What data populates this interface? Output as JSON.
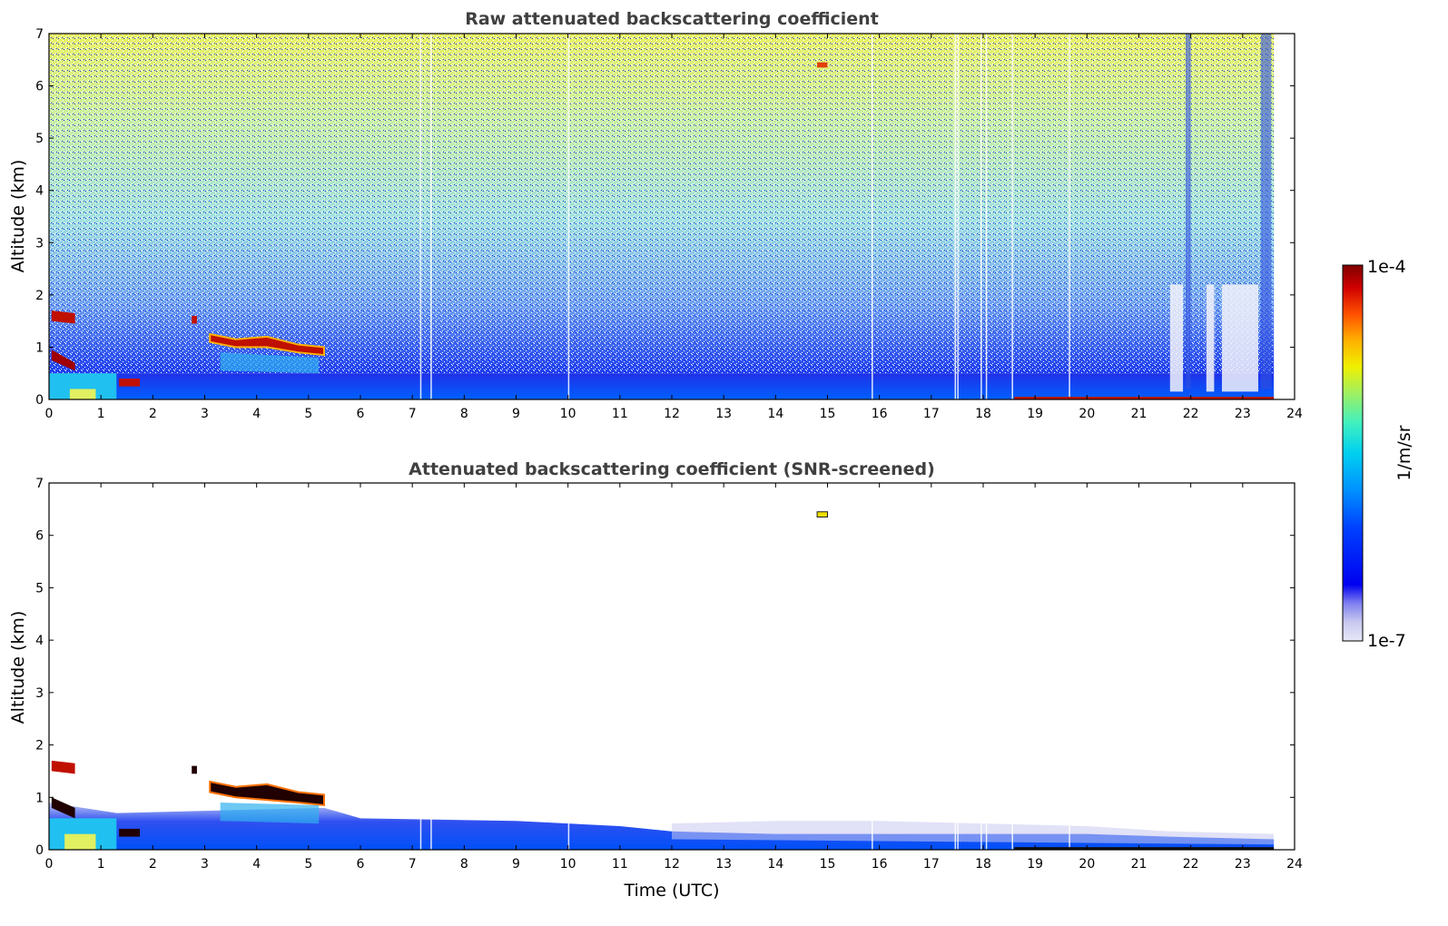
{
  "chart_data": [
    {
      "type": "heatmap",
      "title": "Raw attenuated backscattering coefficient",
      "xlabel": "",
      "ylabel": "Altitude (km)",
      "xlim": [
        0,
        24
      ],
      "ylim": [
        0,
        7
      ],
      "xticks": [
        "0",
        "1",
        "2",
        "3",
        "4",
        "5",
        "6",
        "7",
        "8",
        "9",
        "10",
        "11",
        "12",
        "13",
        "14",
        "15",
        "16",
        "17",
        "18",
        "19",
        "20",
        "21",
        "22",
        "23",
        "24"
      ],
      "yticks": [
        "0",
        "1",
        "2",
        "3",
        "4",
        "5",
        "6",
        "7"
      ],
      "features": [
        {
          "name": "noise",
          "x": [
            0,
            23.6
          ],
          "y": [
            0.5,
            7
          ],
          "level": "low-mid"
        },
        {
          "name": "boundary layer",
          "x": [
            0,
            23.6
          ],
          "y": [
            0,
            0.5
          ],
          "level": "mid"
        },
        {
          "name": "cloud",
          "x": [
            3.1,
            5.3
          ],
          "y": [
            0.85,
            1.25
          ],
          "level": "high"
        },
        {
          "name": "cloud",
          "x": [
            0,
            0.5
          ],
          "y": [
            0.6,
            1.7
          ],
          "level": "high"
        },
        {
          "name": "cloud",
          "x": [
            1.3,
            1.7
          ],
          "y": [
            0.25,
            0.4
          ],
          "level": "high"
        },
        {
          "name": "aerosol",
          "x": [
            14.8,
            15.0
          ],
          "y": [
            6.35,
            6.45
          ],
          "level": "high"
        }
      ]
    },
    {
      "type": "heatmap",
      "title": "Attenuated backscattering coefficient (SNR-screened)",
      "xlabel": "Time (UTC)",
      "ylabel": "Altitude (km)",
      "xlim": [
        0,
        24
      ],
      "ylim": [
        0,
        7
      ],
      "xticks": [
        "0",
        "1",
        "2",
        "3",
        "4",
        "5",
        "6",
        "7",
        "8",
        "9",
        "10",
        "11",
        "12",
        "13",
        "14",
        "15",
        "16",
        "17",
        "18",
        "19",
        "20",
        "21",
        "22",
        "23",
        "24"
      ],
      "yticks": [
        "0",
        "1",
        "2",
        "3",
        "4",
        "5",
        "6",
        "7"
      ],
      "features": [
        {
          "name": "boundary layer",
          "x": [
            0,
            23.6
          ],
          "y": [
            0,
            0.6
          ],
          "level": "mid"
        },
        {
          "name": "cloud",
          "x": [
            3.1,
            5.3
          ],
          "y": [
            0.85,
            1.3
          ],
          "level": "saturated"
        },
        {
          "name": "cloud",
          "x": [
            0,
            0.5
          ],
          "y": [
            0.6,
            1.7
          ],
          "level": "high"
        },
        {
          "name": "aerosol",
          "x": [
            14.8,
            15.0
          ],
          "y": [
            6.35,
            6.45
          ],
          "level": "high"
        }
      ]
    }
  ],
  "colorbar": {
    "label": "1/m/sr",
    "min_label": "1e-7",
    "max_label": "1e-4",
    "scale": "log",
    "colormap": [
      "#e8e8f8",
      "#c8c8f0",
      "#8080f0",
      "#0000f0",
      "#0040ff",
      "#0090ff",
      "#00d0f0",
      "#40f0c0",
      "#a0f060",
      "#f0f000",
      "#ffb000",
      "#ff5000",
      "#d00000",
      "#800000"
    ]
  }
}
